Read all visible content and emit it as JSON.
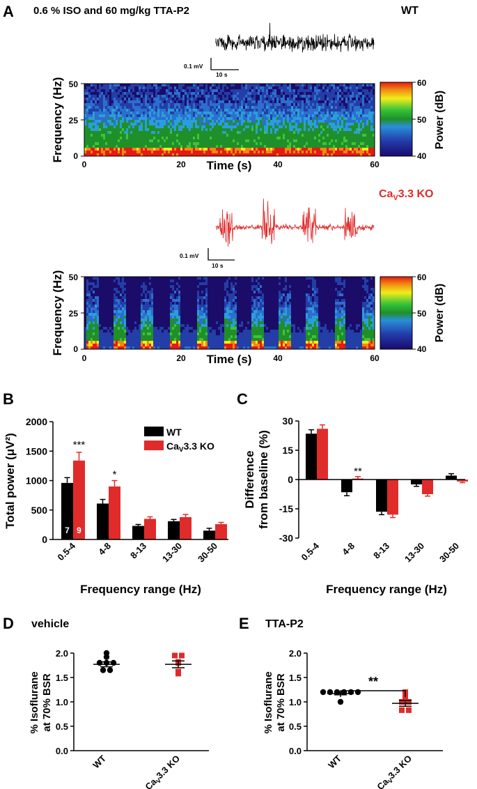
{
  "panel_a": {
    "label": "A",
    "title": "0.6 % ISO and 60 mg/kg TTA-P2",
    "wt_label": "WT",
    "ko_label_prefix": "Ca",
    "ko_label_sub": "V",
    "ko_label_suffix": "3.3 KO",
    "scale_mv": "0.1 mV",
    "scale_s": "10 s",
    "spec_ylabel": "Frequency (Hz)",
    "spec_xlabel": "Time (s)",
    "spec_yticks": [
      "0",
      "25",
      "50"
    ],
    "spec_xticks": [
      "0",
      "20",
      "40",
      "60"
    ],
    "colorbar_label": "Power (dB)",
    "colorbar_ticks": [
      "40",
      "50",
      "60"
    ]
  },
  "colors": {
    "wt": "#000000",
    "ko": "#e02b2b"
  },
  "chart_data": [
    {
      "id": "B",
      "type": "bar",
      "panel_label": "B",
      "xlabel": "Frequency range (Hz)",
      "ylabel": "Total power (μV²)",
      "ylim": [
        0,
        2000
      ],
      "yticks": [
        "0",
        "500",
        "1000",
        "1500",
        "2000"
      ],
      "categories": [
        "0.5-4",
        "4-8",
        "8-13",
        "13-30",
        "30-50"
      ],
      "series": [
        {
          "name": "WT",
          "values": [
            960,
            610,
            230,
            310,
            150
          ],
          "errors": [
            90,
            70,
            25,
            30,
            40
          ],
          "n": "7"
        },
        {
          "name": "Ca_V3.3 KO",
          "values": [
            1340,
            900,
            350,
            380,
            260
          ],
          "errors": [
            140,
            100,
            35,
            45,
            30
          ],
          "n": "9"
        }
      ],
      "legend": [
        "WT",
        "Ca_V3.3 KO"
      ],
      "legend_ko_prefix": "Ca",
      "legend_ko_sub": "V",
      "legend_ko_suffix": "3.3 KO",
      "annotations": [
        "***",
        "*"
      ]
    },
    {
      "id": "C",
      "type": "bar",
      "panel_label": "C",
      "xlabel": "Frequency range (Hz)",
      "ylabel_line1": "Difference",
      "ylabel_line2": "from baseline (%)",
      "ylim": [
        -30,
        30
      ],
      "yticks": [
        "-30",
        "-15",
        "0",
        "15",
        "30"
      ],
      "categories": [
        "0.5-4",
        "4-8",
        "8-13",
        "13-30",
        "30-50"
      ],
      "series": [
        {
          "name": "WT",
          "values": [
            23.5,
            -6.5,
            -16.5,
            -2.5,
            2
          ],
          "errors": [
            2,
            1.8,
            1.5,
            1,
            1
          ]
        },
        {
          "name": "Ca_V3.3 KO",
          "values": [
            26,
            0.5,
            -18,
            -7.5,
            -1
          ],
          "errors": [
            2,
            1,
            1.5,
            1,
            0.6
          ]
        }
      ],
      "annotations": [
        "**"
      ]
    },
    {
      "id": "D",
      "type": "scatter",
      "panel_label": "D",
      "subtitle": "vehicle",
      "ylabel_line1": "% Isoflurane",
      "ylabel_line2": "at 70% BSR",
      "ylim": [
        0,
        2
      ],
      "yticks": [
        "0.0",
        "0.5",
        "1.0",
        "1.5",
        "2.0"
      ],
      "categories": [
        "WT",
        "Ca_V3.3 KO"
      ],
      "xtick_ko_prefix": "Ca",
      "xtick_ko_sub": "V",
      "xtick_ko_suffix": "3.3 KO",
      "series": [
        {
          "name": "WT",
          "values": [
            2.0,
            1.92,
            1.8,
            1.8,
            1.8,
            1.65,
            1.65
          ],
          "mean": 1.77,
          "sem": 0.05
        },
        {
          "name": "Ca_V3.3 KO",
          "values": [
            1.95,
            1.95,
            1.82,
            1.8,
            1.62,
            1.58
          ],
          "mean": 1.77,
          "sem": 0.07
        }
      ]
    },
    {
      "id": "E",
      "type": "scatter",
      "panel_label": "E",
      "subtitle": "TTA-P2",
      "ylabel_line1": "% Isoflurane",
      "ylabel_line2": "at 70% BSR",
      "ylim": [
        0,
        2
      ],
      "yticks": [
        "0.0",
        "0.5",
        "1.0",
        "1.5",
        "2.0"
      ],
      "categories": [
        "WT",
        "Ca_V3.3 KO"
      ],
      "xtick_ko_prefix": "Ca",
      "xtick_ko_sub": "V",
      "xtick_ko_suffix": "3.3 KO",
      "series": [
        {
          "name": "WT",
          "values": [
            1.2,
            1.2,
            1.2,
            1.2,
            1.2,
            1.2,
            1.0
          ],
          "mean": 1.17,
          "sem": 0.025
        },
        {
          "name": "Ca_V3.3 KO",
          "values": [
            1.2,
            1.1,
            1.0,
            1.0,
            0.83,
            0.83
          ],
          "mean": 0.97,
          "sem": 0.06
        }
      ],
      "annotations": [
        "**"
      ]
    }
  ]
}
